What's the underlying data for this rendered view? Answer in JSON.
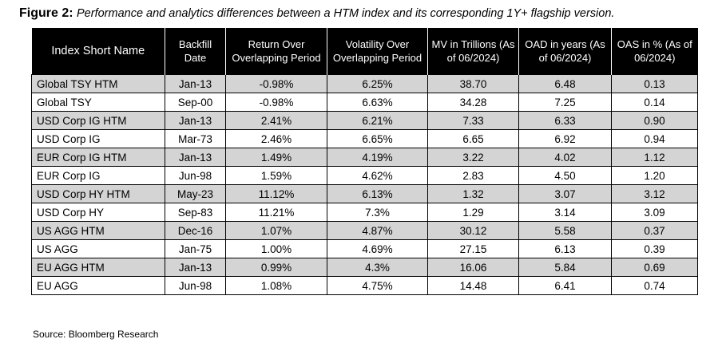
{
  "caption": {
    "label": "Figure 2:",
    "text": "Performance and analytics differences between a HTM index and its corresponding 1Y+ flagship version."
  },
  "table": {
    "headers": [
      "Index Short Name",
      "Backfill Date",
      "Return Over Overlapping Period",
      "Volatility Over Overlapping Period",
      "MV in Trillions (As of 06/2024)",
      "OAD in years (As of 06/2024)",
      "OAS in % (As of 06/2024)"
    ],
    "rows": [
      [
        "Global TSY HTM",
        "Jan-13",
        "-0.98%",
        "6.25%",
        "38.70",
        "6.48",
        "0.13"
      ],
      [
        "Global TSY",
        "Sep-00",
        "-0.98%",
        "6.63%",
        "34.28",
        "7.25",
        "0.14"
      ],
      [
        "USD Corp IG HTM",
        "Jan-13",
        "2.41%",
        "6.21%",
        "7.33",
        "6.33",
        "0.90"
      ],
      [
        "USD Corp IG",
        "Mar-73",
        "2.46%",
        "6.65%",
        "6.65",
        "6.92",
        "0.94"
      ],
      [
        "EUR Corp IG HTM",
        "Jan-13",
        "1.49%",
        "4.19%",
        "3.22",
        "4.02",
        "1.12"
      ],
      [
        "EUR Corp IG",
        "Jun-98",
        "1.59%",
        "4.62%",
        "2.83",
        "4.50",
        "1.20"
      ],
      [
        "USD Corp HY HTM",
        "May-23",
        "11.12%",
        "6.13%",
        "1.32",
        "3.07",
        "3.12"
      ],
      [
        "USD Corp HY",
        "Sep-83",
        "11.21%",
        "7.3%",
        "1.29",
        "3.14",
        "3.09"
      ],
      [
        "US AGG HTM",
        "Dec-16",
        "1.07%",
        "4.87%",
        "30.12",
        "5.58",
        "0.37"
      ],
      [
        "US AGG",
        "Jan-75",
        "1.00%",
        "4.69%",
        "27.15",
        "6.13",
        "0.39"
      ],
      [
        "EU AGG HTM",
        "Jan-13",
        "0.99%",
        "4.3%",
        "16.06",
        "5.84",
        "0.69"
      ],
      [
        "EU AGG",
        "Jun-98",
        "1.08%",
        "4.75%",
        "14.48",
        "6.41",
        "0.74"
      ]
    ]
  },
  "source": "Source: Bloomberg Research",
  "colors": {
    "header_bg": "#000000",
    "header_text": "#ffffff",
    "shaded_row": "#d4d4d4"
  }
}
